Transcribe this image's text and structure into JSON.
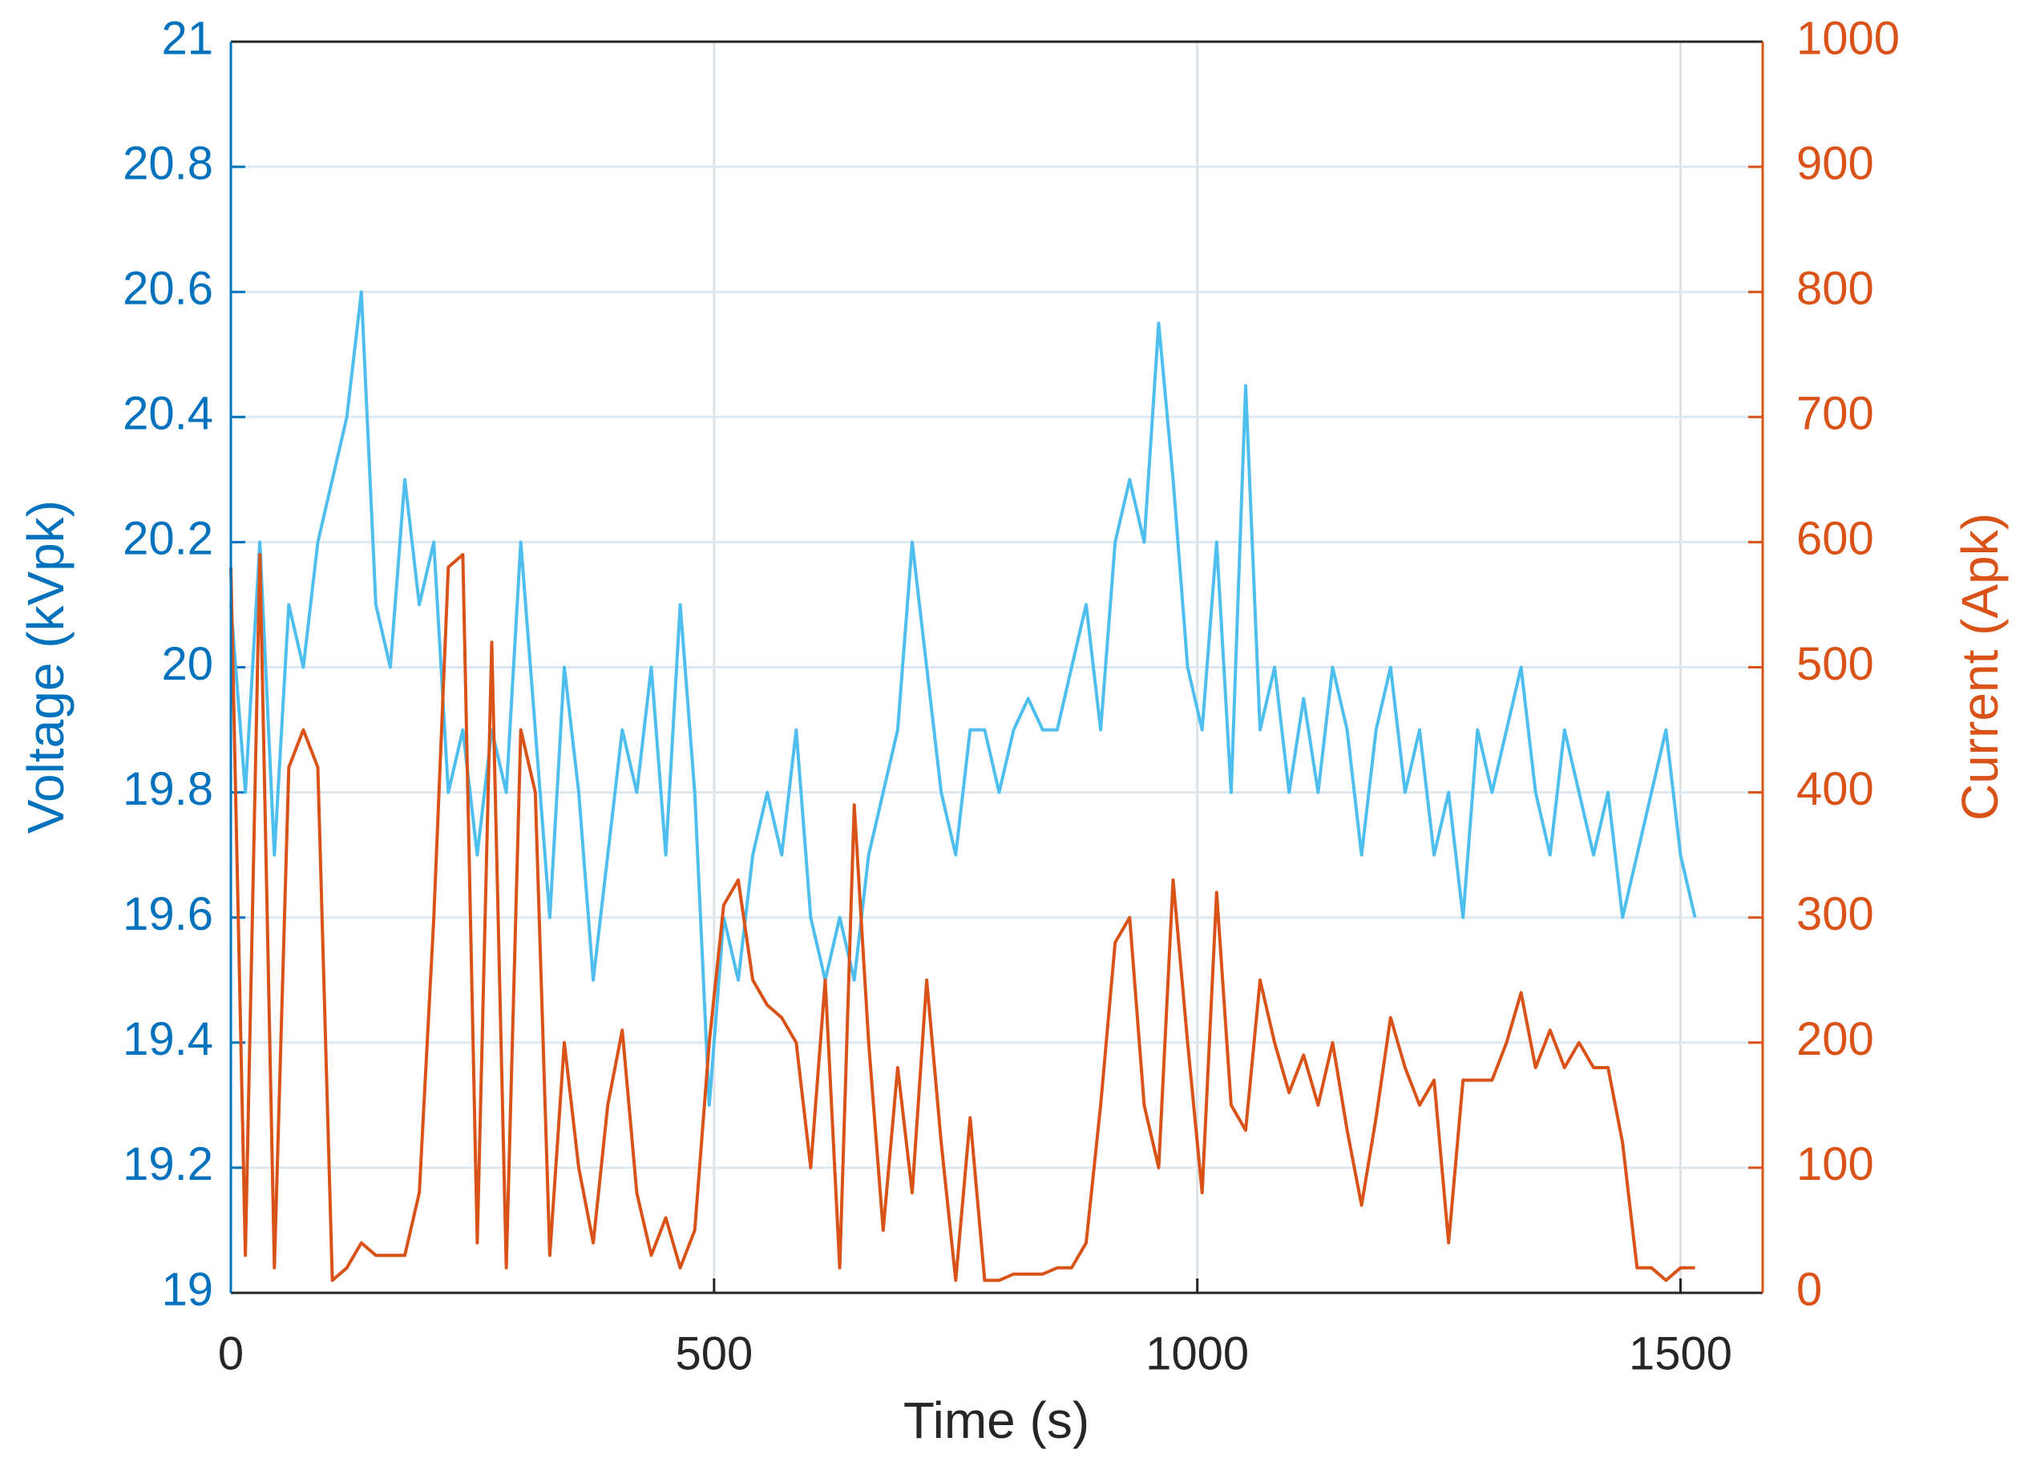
{
  "chart_data": {
    "type": "line",
    "xlabel": "Time (s)",
    "ylabel": "Voltage (kVpk)",
    "y2label": "Current (Apk)",
    "x": [
      0,
      15,
      30,
      45,
      60,
      75,
      90,
      105,
      120,
      135,
      150,
      165,
      180,
      195,
      210,
      225,
      240,
      255,
      270,
      285,
      300,
      315,
      330,
      345,
      360,
      375,
      390,
      405,
      420,
      435,
      450,
      465,
      480,
      495,
      510,
      525,
      540,
      555,
      570,
      585,
      600,
      615,
      630,
      645,
      660,
      675,
      690,
      705,
      720,
      735,
      750,
      765,
      780,
      795,
      810,
      825,
      840,
      855,
      870,
      885,
      900,
      915,
      930,
      945,
      960,
      975,
      990,
      1005,
      1020,
      1035,
      1050,
      1065,
      1080,
      1095,
      1110,
      1125,
      1140,
      1155,
      1170,
      1185,
      1200,
      1215,
      1230,
      1245,
      1260,
      1275,
      1290,
      1305,
      1320,
      1335,
      1350,
      1365,
      1380,
      1395,
      1410,
      1425,
      1440,
      1455,
      1470,
      1485,
      1500,
      1515
    ],
    "series": [
      {
        "name": "Voltage",
        "color": "#4dbeee",
        "axis": "y",
        "values": [
          20.1,
          19.8,
          20.2,
          19.7,
          20.1,
          20.0,
          20.2,
          20.3,
          20.4,
          20.6,
          20.1,
          20.0,
          20.3,
          20.1,
          20.2,
          19.8,
          19.9,
          19.7,
          19.9,
          19.8,
          20.2,
          19.9,
          19.6,
          20.0,
          19.8,
          19.5,
          19.7,
          19.9,
          19.8,
          20.0,
          19.7,
          20.1,
          19.8,
          19.3,
          19.6,
          19.5,
          19.7,
          19.8,
          19.7,
          19.9,
          19.6,
          19.5,
          19.6,
          19.5,
          19.7,
          19.8,
          19.9,
          20.2,
          20.0,
          19.8,
          19.7,
          19.9,
          19.9,
          19.8,
          19.9,
          19.95,
          19.9,
          19.9,
          20.0,
          20.1,
          19.9,
          20.2,
          20.3,
          20.2,
          20.55,
          20.3,
          20.0,
          19.9,
          20.2,
          19.8,
          20.45,
          19.9,
          20.0,
          19.8,
          19.95,
          19.8,
          20.0,
          19.9,
          19.7,
          19.9,
          20.0,
          19.8,
          19.9,
          19.7,
          19.8,
          19.6,
          19.9,
          19.8,
          19.9,
          20.0,
          19.8,
          19.7,
          19.9,
          19.8,
          19.7,
          19.8,
          19.6,
          19.7,
          19.8,
          19.9,
          19.7,
          19.6
        ]
      },
      {
        "name": "Current",
        "color": "#d95319",
        "axis": "y2",
        "values": [
          580,
          30,
          590,
          20,
          420,
          450,
          420,
          10,
          20,
          40,
          30,
          30,
          30,
          80,
          300,
          580,
          590,
          40,
          520,
          20,
          450,
          400,
          30,
          200,
          100,
          40,
          150,
          210,
          80,
          30,
          60,
          20,
          50,
          200,
          310,
          330,
          250,
          230,
          220,
          200,
          100,
          250,
          20,
          390,
          200,
          50,
          180,
          80,
          250,
          120,
          10,
          140,
          10,
          10,
          15,
          15,
          15,
          20,
          20,
          40,
          150,
          280,
          300,
          150,
          100,
          330,
          200,
          80,
          320,
          150,
          130,
          250,
          200,
          160,
          190,
          150,
          200,
          130,
          70,
          140,
          220,
          180,
          150,
          170,
          40,
          170,
          170,
          170,
          200,
          240,
          180,
          210,
          180,
          200,
          180,
          180,
          120,
          20,
          20,
          10,
          20,
          20
        ]
      }
    ],
    "xlim": [
      0,
      1585
    ],
    "xticks": [
      0,
      500,
      1000,
      1500
    ],
    "ylim": [
      19,
      21
    ],
    "yticks": [
      19,
      19.2,
      19.4,
      19.6,
      19.8,
      20,
      20.2,
      20.4,
      20.6,
      20.8,
      21
    ],
    "y2lim": [
      0,
      1000
    ],
    "y2ticks": [
      0,
      100,
      200,
      300,
      400,
      500,
      600,
      700,
      800,
      900,
      1000
    ],
    "grid": true,
    "ycolor": "#0072bd",
    "y2color": "#d95319"
  }
}
